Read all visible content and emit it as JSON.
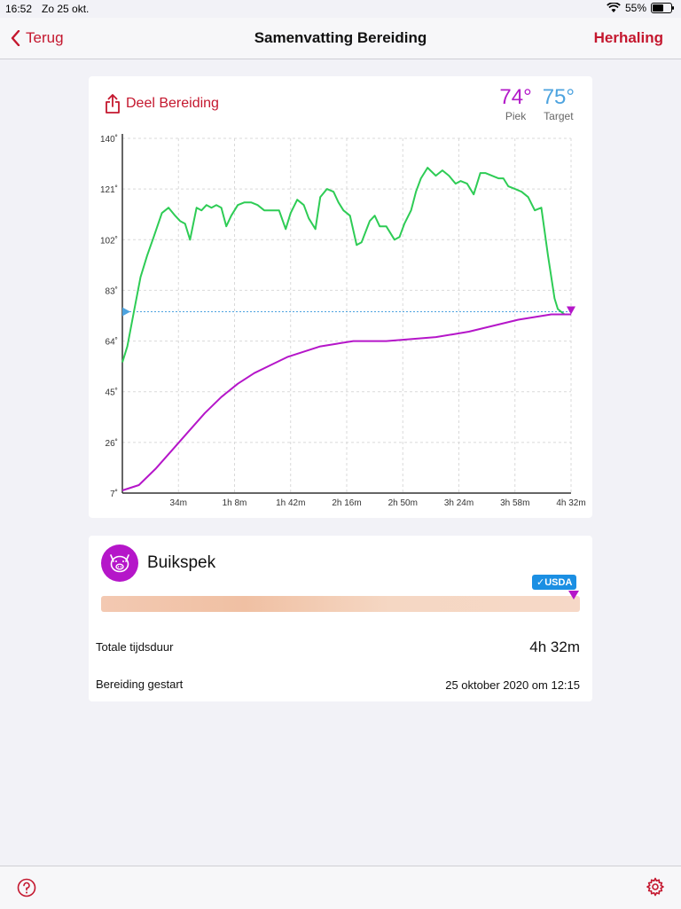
{
  "status_bar": {
    "time": "16:52",
    "date": "Zo 25 okt.",
    "battery": "55%"
  },
  "nav": {
    "back_label": "Terug",
    "title": "Samenvatting Bereiding",
    "right_label": "Herhaling"
  },
  "summary": {
    "share_label": "Deel Bereiding",
    "peak": {
      "value": "74°",
      "label": "Piek"
    },
    "target": {
      "value": "75°",
      "label": "Target"
    }
  },
  "chart_data": {
    "type": "line",
    "x_unit": "minutes",
    "x_ticks": [
      34,
      68,
      102,
      136,
      170,
      204,
      238,
      272
    ],
    "x_tick_labels": [
      "34m",
      "1h 8m",
      "1h 42m",
      "2h 16m",
      "2h 50m",
      "3h 24m",
      "3h 58m",
      "4h 32m"
    ],
    "y_ticks": [
      7,
      26,
      45,
      64,
      83,
      102,
      121,
      140
    ],
    "y_tick_labels": [
      "7˚",
      "26˚",
      "45˚",
      "64˚",
      "83˚",
      "102˚",
      "121˚",
      "140˚"
    ],
    "xlim": [
      0,
      272
    ],
    "ylim": [
      7,
      140
    ],
    "target": 75,
    "series": [
      {
        "color": "#2ecc55",
        "x": [
          0,
          3,
          7,
          11,
          15,
          19,
          24,
          28,
          32,
          35,
          38,
          41,
          45,
          48,
          51,
          54,
          57,
          60,
          63,
          66,
          70,
          74,
          78,
          82,
          86,
          89,
          92,
          95,
          99,
          102,
          106,
          110,
          113,
          117,
          120,
          124,
          128,
          131,
          134,
          138,
          142,
          145,
          150,
          153,
          156,
          160,
          165,
          168,
          171,
          175,
          178,
          181,
          185,
          190,
          194,
          198,
          202,
          205,
          209,
          213,
          217,
          220,
          224,
          228,
          231,
          234,
          238,
          242,
          246,
          250,
          254,
          258,
          262,
          264,
          266,
          268,
          270,
          272
        ],
        "y": [
          56,
          62,
          75,
          88,
          96,
          103,
          112,
          114,
          111,
          109,
          108,
          102,
          114,
          113,
          115,
          114,
          115,
          114,
          107,
          111,
          115,
          116,
          116,
          115,
          113,
          113,
          113,
          113,
          106,
          112,
          117,
          115,
          110,
          106,
          118,
          121,
          120,
          116,
          113,
          111,
          100,
          101,
          109,
          111,
          107,
          107,
          102,
          103,
          108,
          113,
          120,
          125,
          129,
          126,
          128,
          126,
          123,
          124,
          123,
          119,
          127,
          127,
          126,
          125,
          125,
          122,
          121,
          120,
          118,
          113,
          114,
          96,
          80,
          76,
          75,
          74,
          74,
          74
        ]
      },
      {
        "color": "#b516c9",
        "x": [
          0,
          10,
          20,
          30,
          40,
          50,
          60,
          70,
          80,
          90,
          100,
          110,
          120,
          130,
          140,
          150,
          160,
          170,
          180,
          190,
          200,
          210,
          220,
          230,
          240,
          250,
          260,
          272
        ],
        "y": [
          8,
          10,
          16,
          23,
          30,
          37,
          43,
          48,
          52,
          55,
          58,
          60,
          62,
          63,
          64,
          64,
          64,
          64.5,
          65,
          65.5,
          66.5,
          67.5,
          69,
          70.5,
          72,
          73,
          74,
          74
        ]
      }
    ]
  },
  "meat": {
    "name": "Buikspek",
    "badge": "✓USDA"
  },
  "rows": [
    {
      "label": "Totale tijdsduur",
      "value": "4h 32m"
    },
    {
      "label": "Bereiding gestart",
      "value": "25 oktober 2020 om 12:15"
    }
  ]
}
